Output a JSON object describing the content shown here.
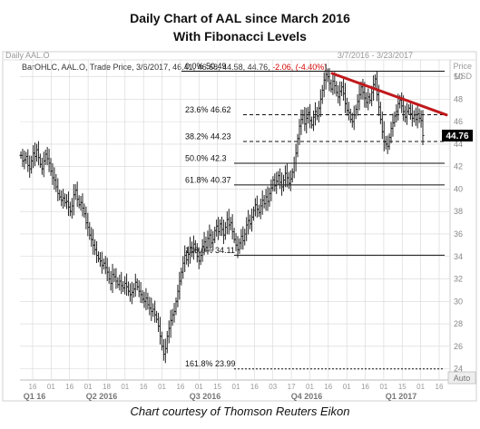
{
  "title": "Daily Chart of AAL since March 2016",
  "subtitle": "With Fibonacci Levels",
  "caption": "Chart courtesy of Thomson Reuters Eikon",
  "header": {
    "left_label": "Daily AAL.O",
    "range_label": "3/7/2016 - 3/23/2017",
    "quote_prefix": "BarOHLC, AAL.O, Trade Price, 3/6/2017, 46.41, 46.68, 44.58, 44.76, ",
    "quote_change": "-2.06, (-4.40%)",
    "y_unit_1": "Price",
    "y_unit_2": "USD"
  },
  "auto_label": "Auto",
  "price_badge": "44.76",
  "colors": {
    "bars": "#222222",
    "trendline": "#c0181b",
    "change": "#d40000",
    "badge_bg": "#000000",
    "badge_fg": "#ffffff",
    "grid": "#d6d6d6",
    "fib": "#111111"
  },
  "chart_data": {
    "type": "ohlc-bar",
    "title": "Daily Chart of AAL since March 2016",
    "subtitle": "With Fibonacci Levels",
    "symbol": "AAL.O",
    "date_range": [
      "2016-03-07",
      "2017-03-23"
    ],
    "ylim": [
      23,
      51.5
    ],
    "yticks": [
      24,
      26,
      28,
      30,
      32,
      34,
      36,
      38,
      40,
      42,
      44,
      46,
      48,
      50
    ],
    "grid": true,
    "x_tick_labels": [
      "16",
      "01",
      "16",
      "01",
      "18",
      "01",
      "16",
      "01",
      "16",
      "01",
      "15",
      "01",
      "16",
      "03",
      "17",
      "01",
      "16",
      "01",
      "16",
      "01",
      "15",
      "01",
      "16"
    ],
    "x_periods": [
      "Q1 16",
      "Q2 2016",
      "Q3 2016",
      "Q4 2016",
      "Q1 2017"
    ],
    "last_bar": {
      "date": "3/6/2017",
      "open": 46.41,
      "high": 46.68,
      "low": 44.58,
      "close": 44.76,
      "change": -2.06,
      "change_pct": -4.4
    },
    "closes": [
      43.0,
      42.5,
      42.6,
      42.9,
      42.1,
      41.8,
      42.5,
      43.2,
      42.9,
      43.5,
      42.8,
      42.2,
      41.8,
      42.5,
      43.1,
      42.7,
      42.3,
      41.6,
      41.0,
      40.8,
      40.2,
      39.6,
      39.3,
      39.0,
      39.2,
      38.8,
      38.9,
      38.4,
      38.0,
      38.5,
      39.5,
      39.9,
      39.1,
      38.6,
      38.8,
      38.3,
      37.8,
      37.0,
      36.6,
      35.9,
      35.5,
      35.0,
      34.6,
      34.1,
      33.8,
      33.6,
      33.2,
      33.4,
      33.0,
      32.6,
      32.0,
      31.6,
      32.4,
      32.2,
      31.8,
      31.5,
      31.8,
      31.4,
      31.2,
      31.6,
      31.3,
      30.9,
      30.6,
      30.8,
      31.1,
      31.7,
      31.3,
      30.9,
      30.6,
      30.2,
      30.0,
      30.3,
      29.7,
      29.4,
      29.1,
      29.3,
      28.8,
      28.4,
      27.8,
      26.9,
      26.0,
      25.3,
      25.8,
      26.9,
      27.6,
      28.3,
      28.8,
      29.1,
      30.0,
      30.9,
      31.8,
      32.6,
      33.4,
      34.1,
      33.7,
      34.2,
      34.8,
      34.4,
      35.1,
      34.6,
      34.0,
      33.6,
      34.1,
      34.9,
      35.3,
      34.8,
      35.6,
      35.9,
      35.2,
      35.5,
      36.3,
      36.7,
      36.2,
      36.9,
      36.4,
      35.9,
      36.6,
      37.3,
      36.8,
      37.0,
      36.2,
      35.5,
      35.0,
      34.6,
      35.2,
      35.8,
      35.4,
      36.0,
      36.8,
      37.2,
      36.9,
      37.5,
      38.1,
      38.6,
      38.2,
      37.9,
      38.5,
      39.0,
      38.7,
      39.3,
      38.9,
      39.6,
      40.1,
      40.8,
      40.3,
      40.7,
      41.2,
      40.6,
      40.2,
      40.8,
      41.4,
      41.0,
      40.5,
      40.9,
      41.5,
      42.3,
      43.2,
      44.5,
      45.6,
      46.2,
      46.6,
      45.8,
      46.3,
      46.8,
      46.1,
      45.7,
      46.4,
      46.9,
      46.5,
      47.2,
      48.0,
      48.8,
      49.7,
      50.2,
      50.0,
      49.4,
      48.9,
      49.6,
      49.2,
      48.6,
      48.2,
      48.7,
      49.1,
      48.5,
      47.6,
      47.0,
      46.8,
      46.2,
      46.0,
      46.6,
      47.1,
      47.8,
      48.4,
      49.1,
      48.6,
      48.1,
      47.7,
      48.2,
      47.9,
      48.6,
      49.3,
      49.8,
      48.4,
      47.3,
      46.2,
      45.1,
      44.2,
      44.0,
      43.8,
      44.6,
      45.4,
      45.9,
      46.5,
      46.9,
      47.6,
      47.9,
      47.4,
      46.9,
      46.4,
      46.9,
      47.2,
      46.7,
      46.3,
      46.6,
      46.2,
      46.7,
      46.3,
      46.1,
      44.76
    ],
    "fibonacci": [
      {
        "label": "0.0%",
        "value": 50.49
      },
      {
        "label": "23.6%",
        "value": 46.62
      },
      {
        "label": "38.2%",
        "value": 44.23
      },
      {
        "label": "50.0%",
        "value": 42.3
      },
      {
        "label": "61.8%",
        "value": 40.37
      },
      {
        "label": "100.0%",
        "value": 34.11
      },
      {
        "label": "161.8%",
        "value": 23.99
      }
    ],
    "trendline": {
      "from": 50.3,
      "to": 46.6
    }
  }
}
